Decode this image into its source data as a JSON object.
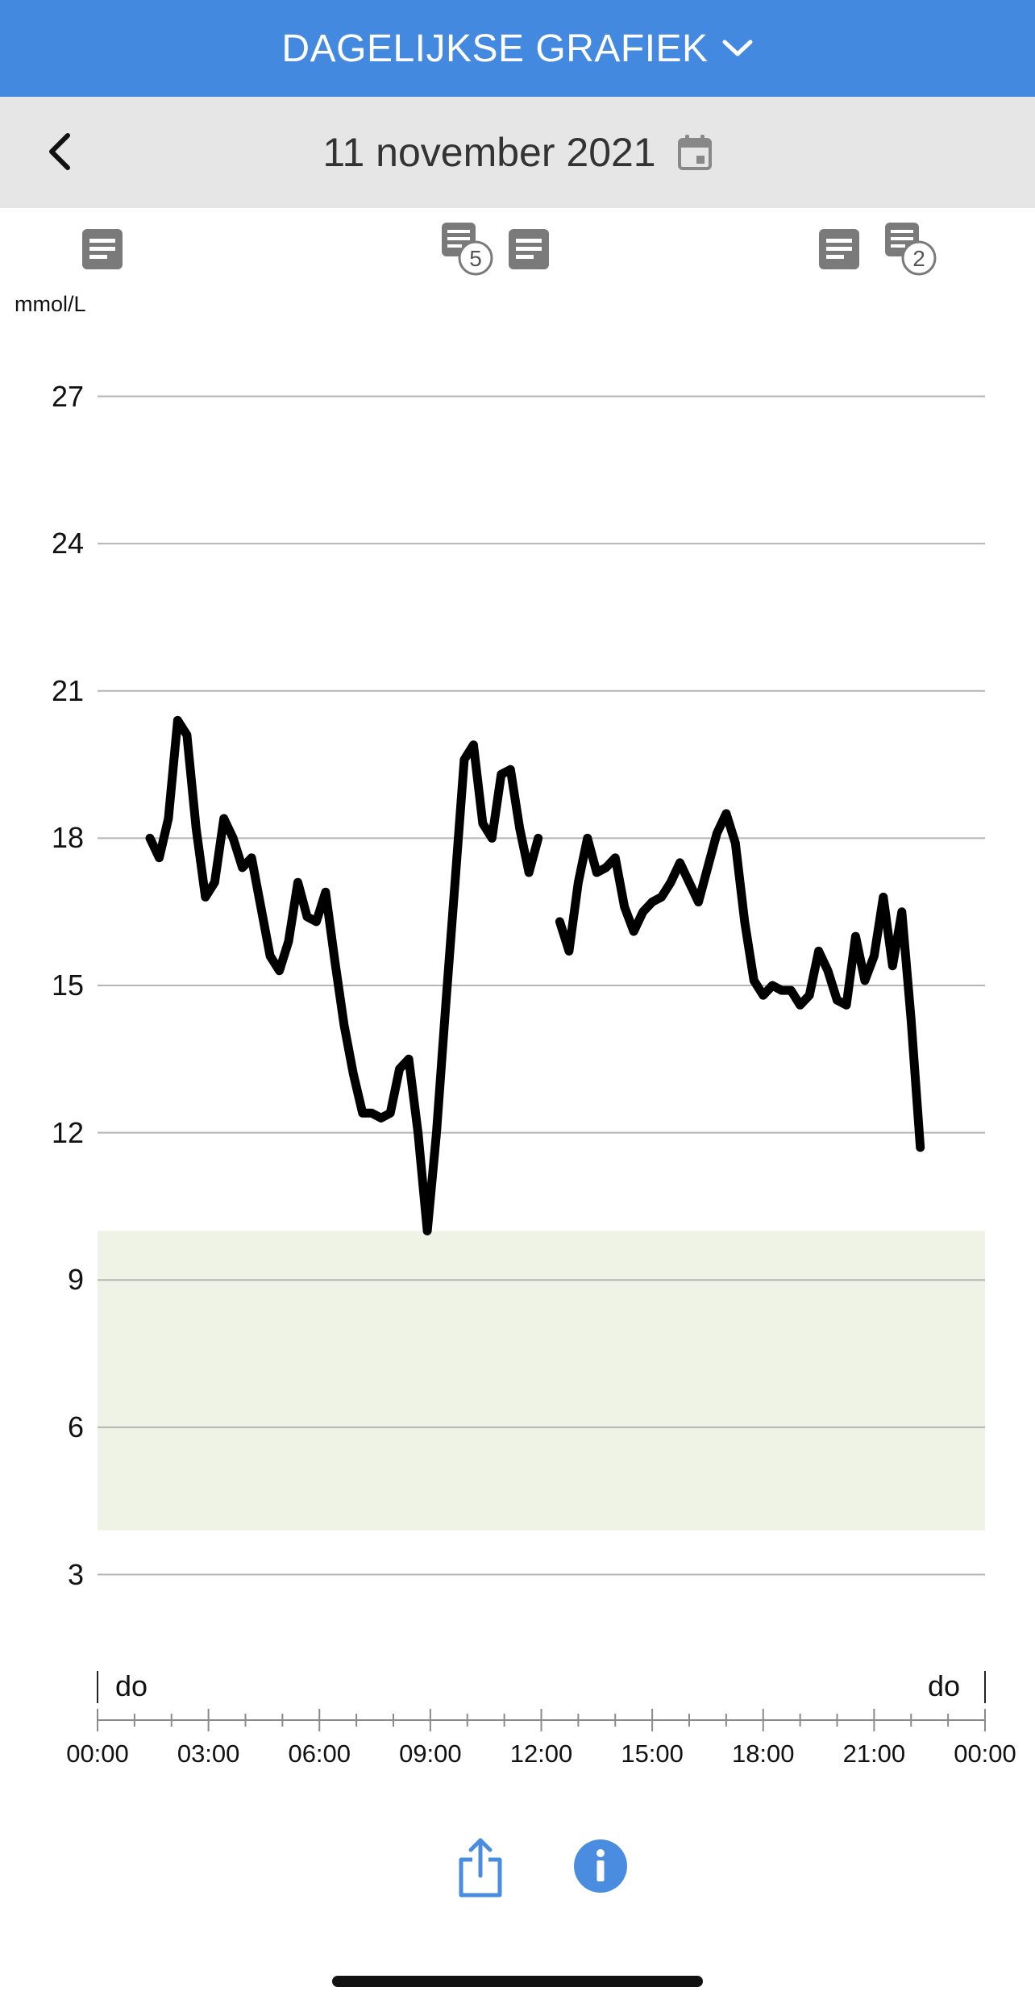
{
  "header": {
    "title": "DAGELIJKSE GRAFIEK"
  },
  "datebar": {
    "date": "11 november 2021"
  },
  "chart_data": {
    "type": "line",
    "ylabel": "mmol/L",
    "ylim": [
      0,
      30
    ],
    "y_ticks": [
      "27",
      "24",
      "21",
      "18",
      "15",
      "12",
      "9",
      "6",
      "3"
    ],
    "x_ticks": [
      "00:00",
      "03:00",
      "06:00",
      "09:00",
      "12:00",
      "15:00",
      "18:00",
      "21:00",
      "00:00"
    ],
    "day_labels": [
      "do",
      "do"
    ],
    "target_range": [
      3.9,
      10.0
    ],
    "target_color": "#eef3e6",
    "line_color": "#000000",
    "note_markers": [
      {
        "time": "01:00",
        "count": null
      },
      {
        "time": "10:00",
        "count": "5"
      },
      {
        "time": "11:40",
        "count": null
      },
      {
        "time": "20:00",
        "count": null
      },
      {
        "time": "21:50",
        "count": "2"
      }
    ],
    "series": [
      {
        "segments": [
          [
            [
              "01:25",
              18.0
            ],
            [
              "01:40",
              17.6
            ],
            [
              "01:55",
              18.4
            ],
            [
              "02:10",
              20.4
            ],
            [
              "02:25",
              20.1
            ],
            [
              "02:40",
              18.2
            ],
            [
              "02:55",
              16.8
            ],
            [
              "03:10",
              17.1
            ],
            [
              "03:25",
              18.4
            ],
            [
              "03:40",
              18.0
            ],
            [
              "03:55",
              17.4
            ],
            [
              "04:10",
              17.6
            ],
            [
              "04:25",
              16.6
            ],
            [
              "04:40",
              15.6
            ],
            [
              "04:55",
              15.3
            ],
            [
              "05:10",
              15.9
            ],
            [
              "05:25",
              17.1
            ],
            [
              "05:40",
              16.4
            ],
            [
              "05:55",
              16.3
            ],
            [
              "06:10",
              16.9
            ],
            [
              "06:25",
              15.5
            ],
            [
              "06:40",
              14.2
            ],
            [
              "06:55",
              13.2
            ],
            [
              "07:10",
              12.4
            ],
            [
              "07:25",
              12.4
            ],
            [
              "07:40",
              12.3
            ],
            [
              "07:55",
              12.4
            ],
            [
              "08:10",
              13.3
            ],
            [
              "08:25",
              13.5
            ],
            [
              "08:40",
              12.0
            ],
            [
              "08:55",
              10.0
            ],
            [
              "09:10",
              12.0
            ],
            [
              "09:25",
              14.6
            ],
            [
              "09:40",
              17.1
            ],
            [
              "09:55",
              19.6
            ],
            [
              "10:10",
              19.9
            ],
            [
              "10:25",
              18.3
            ],
            [
              "10:40",
              18.0
            ],
            [
              "10:55",
              19.3
            ],
            [
              "11:10",
              19.4
            ],
            [
              "11:25",
              18.2
            ],
            [
              "11:40",
              17.3
            ],
            [
              "11:55",
              18.0
            ]
          ],
          [
            [
              "12:30",
              16.3
            ],
            [
              "12:45",
              15.7
            ],
            [
              "13:00",
              17.1
            ],
            [
              "13:15",
              18.0
            ],
            [
              "13:30",
              17.3
            ],
            [
              "13:45",
              17.4
            ],
            [
              "14:00",
              17.6
            ],
            [
              "14:15",
              16.6
            ],
            [
              "14:30",
              16.1
            ],
            [
              "14:45",
              16.5
            ],
            [
              "15:00",
              16.7
            ],
            [
              "15:15",
              16.8
            ],
            [
              "15:30",
              17.1
            ],
            [
              "15:45",
              17.5
            ],
            [
              "16:00",
              17.1
            ],
            [
              "16:15",
              16.7
            ],
            [
              "16:30",
              17.4
            ],
            [
              "16:45",
              18.1
            ],
            [
              "17:00",
              18.5
            ],
            [
              "17:15",
              17.9
            ],
            [
              "17:30",
              16.3
            ],
            [
              "17:45",
              15.1
            ],
            [
              "18:00",
              14.8
            ],
            [
              "18:15",
              15.0
            ],
            [
              "18:30",
              14.9
            ],
            [
              "18:45",
              14.9
            ],
            [
              "19:00",
              14.6
            ],
            [
              "19:15",
              14.8
            ],
            [
              "19:30",
              15.7
            ],
            [
              "19:45",
              15.3
            ],
            [
              "20:00",
              14.7
            ],
            [
              "20:15",
              14.6
            ],
            [
              "20:30",
              16.0
            ],
            [
              "20:45",
              15.1
            ],
            [
              "21:00",
              15.6
            ],
            [
              "21:15",
              16.8
            ],
            [
              "21:30",
              15.4
            ],
            [
              "21:45",
              16.5
            ],
            [
              "22:00",
              14.3
            ],
            [
              "22:15",
              11.7
            ]
          ]
        ]
      }
    ]
  }
}
